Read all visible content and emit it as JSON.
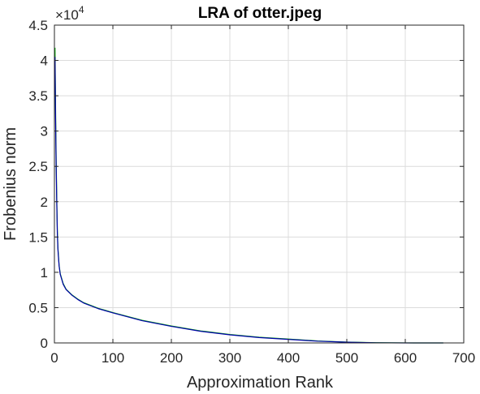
{
  "chart_data": {
    "type": "line",
    "title": "LRA of otter.jpeg",
    "xlabel": "Approximation Rank",
    "ylabel": "Frobenius norm",
    "xlim": [
      0,
      700
    ],
    "ylim": [
      0,
      45000
    ],
    "x_ticks": [
      0,
      100,
      200,
      300,
      400,
      500,
      600,
      700
    ],
    "y_ticks": [
      0,
      5000,
      10000,
      15000,
      20000,
      25000,
      30000,
      35000,
      40000,
      45000
    ],
    "x_tick_labels": [
      "0",
      "100",
      "200",
      "300",
      "400",
      "500",
      "600",
      "700"
    ],
    "y_tick_labels": [
      "0",
      "0.5",
      "1",
      "1.5",
      "2",
      "2.5",
      "3",
      "3.5",
      "4",
      "4.5"
    ],
    "y_exponent": {
      "base": "×10",
      "power": "4"
    },
    "grid": true,
    "series": [
      {
        "color": "#00aa00",
        "x": [
          1,
          2,
          3,
          4,
          5,
          6,
          8,
          10,
          15,
          20,
          30,
          40,
          50,
          75,
          100,
          150,
          200,
          250,
          300,
          350,
          400,
          450,
          500,
          550,
          600,
          665
        ],
        "y": [
          41800,
          33000,
          26000,
          20500,
          16000,
          13500,
          11000,
          9800,
          8400,
          7600,
          6800,
          6200,
          5700,
          4900,
          4300,
          3200,
          2400,
          1700,
          1200,
          800,
          550,
          280,
          120,
          30,
          5,
          0
        ]
      },
      {
        "color": "#0000aa",
        "x": [
          1,
          2,
          3,
          4,
          5,
          6,
          8,
          10,
          15,
          20,
          30,
          40,
          50,
          75,
          100,
          150,
          200,
          250,
          300,
          350,
          400,
          450,
          500,
          550,
          600,
          665
        ],
        "y": [
          40500,
          31500,
          25000,
          19800,
          15500,
          13200,
          10900,
          9700,
          8300,
          7550,
          6750,
          6150,
          5650,
          4850,
          4250,
          3150,
          2350,
          1650,
          1150,
          760,
          500,
          250,
          100,
          20,
          3,
          0
        ]
      }
    ]
  }
}
